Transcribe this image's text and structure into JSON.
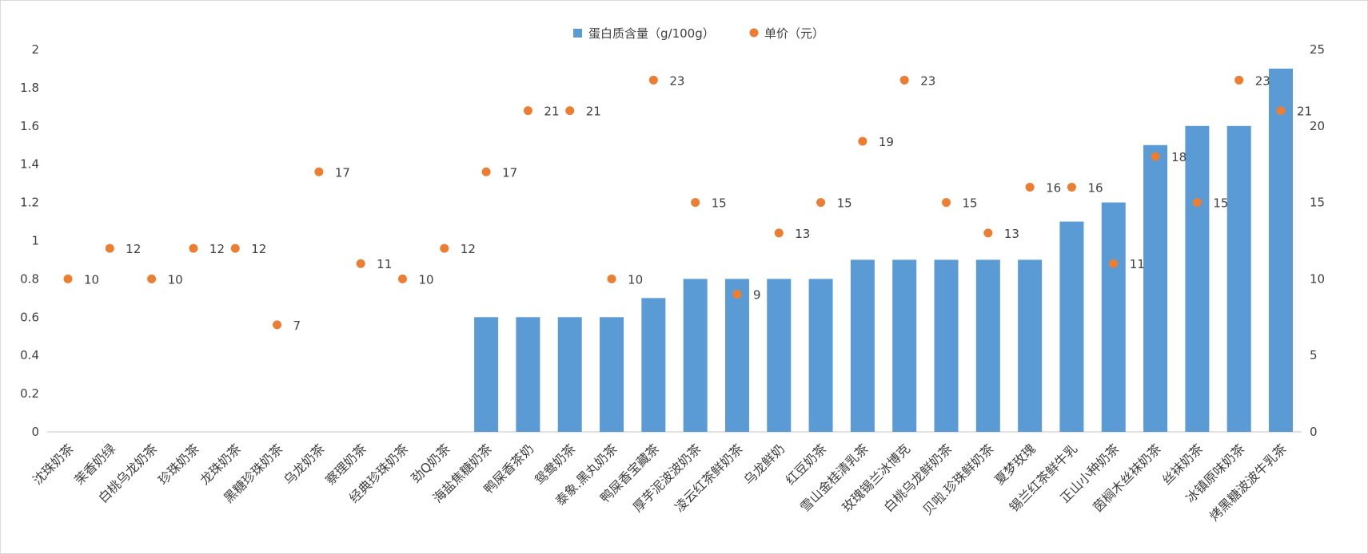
{
  "chart_data": {
    "type": "bar+scatter",
    "categories": [
      "沈珠奶茶",
      "茉香奶绿",
      "白桃乌龙奶茶",
      "珍珠奶茶",
      "龙珠奶茶",
      "黑糖珍珠奶茶",
      "乌龙奶茶",
      "察理奶茶",
      "经典珍珠奶茶",
      "劲Q奶茶",
      "海盐焦糖奶茶",
      "鸭屎香茶奶",
      "鸳鸯奶茶",
      "泰象.黑丸奶茶",
      "鸭屎香宝藏茶",
      "厚芋泥波波奶茶",
      "凌云红茶鲜奶茶",
      "乌龙鲜奶",
      "红豆奶茶",
      "雪山金桂清乳茶",
      "玫瑰锡兰冰博克",
      "白桃乌龙鲜奶茶",
      "贝啦.珍珠鲜奶茶",
      "夏梦玫瑰",
      "锡兰红茶鲜牛乳",
      "正山小种奶茶",
      "茵榈木丝袜奶茶",
      "丝袜奶茶",
      "冰镇原味奶茶",
      "烤黑糖波波牛乳茶"
    ],
    "series": [
      {
        "name": "蛋白质含量（g/100g）",
        "type": "bar",
        "axis": "left",
        "color": "#5b9bd5",
        "values": [
          0,
          0,
          0,
          0,
          0,
          0,
          0,
          0,
          0,
          0,
          0.6,
          0.6,
          0.6,
          0.6,
          0.7,
          0.8,
          0.8,
          0.8,
          0.8,
          0.9,
          0.9,
          0.9,
          0.9,
          0.9,
          1.1,
          1.2,
          1.5,
          1.6,
          1.6,
          1.9
        ]
      },
      {
        "name": "单价（元）",
        "type": "scatter",
        "axis": "right",
        "color": "#ed7d31",
        "values": [
          10,
          12,
          10,
          12,
          12,
          7,
          17,
          11,
          10,
          12,
          17,
          21,
          21,
          10,
          23,
          15,
          9,
          13,
          15,
          19,
          23,
          15,
          13,
          16,
          16,
          11,
          18,
          15,
          23,
          21
        ]
      }
    ],
    "left_axis": {
      "ylim": [
        0,
        2
      ],
      "ticks": [
        "0",
        "0.2",
        "0.4",
        "0.6",
        "0.8",
        "1",
        "1.2",
        "1.4",
        "1.6",
        "1.8",
        "2"
      ]
    },
    "right_axis": {
      "ylim": [
        0,
        25
      ],
      "ticks": [
        "0",
        "5",
        "10",
        "15",
        "20",
        "25"
      ]
    },
    "legend": {
      "placement": "top",
      "labels": [
        "蛋白质含量（g/100g）",
        "单价（元）"
      ]
    },
    "grid": false
  }
}
